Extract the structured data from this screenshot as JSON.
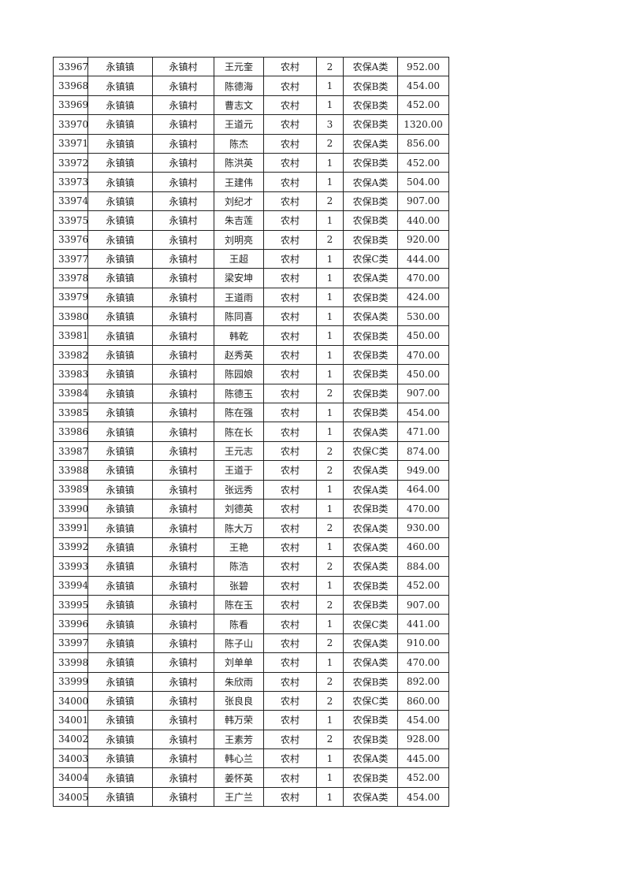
{
  "table": {
    "rows": [
      [
        "33967",
        "永镇镇",
        "永镇村",
        "王元奎",
        "农村",
        "2",
        "农保A类",
        "952.00"
      ],
      [
        "33968",
        "永镇镇",
        "永镇村",
        "陈德海",
        "农村",
        "1",
        "农保B类",
        "454.00"
      ],
      [
        "33969",
        "永镇镇",
        "永镇村",
        "曹志文",
        "农村",
        "1",
        "农保B类",
        "452.00"
      ],
      [
        "33970",
        "永镇镇",
        "永镇村",
        "王道元",
        "农村",
        "3",
        "农保B类",
        "1320.00"
      ],
      [
        "33971",
        "永镇镇",
        "永镇村",
        "陈杰",
        "农村",
        "2",
        "农保A类",
        "856.00"
      ],
      [
        "33972",
        "永镇镇",
        "永镇村",
        "陈洪英",
        "农村",
        "1",
        "农保B类",
        "452.00"
      ],
      [
        "33973",
        "永镇镇",
        "永镇村",
        "王建伟",
        "农村",
        "1",
        "农保A类",
        "504.00"
      ],
      [
        "33974",
        "永镇镇",
        "永镇村",
        "刘纪才",
        "农村",
        "2",
        "农保B类",
        "907.00"
      ],
      [
        "33975",
        "永镇镇",
        "永镇村",
        "朱吉莲",
        "农村",
        "1",
        "农保B类",
        "440.00"
      ],
      [
        "33976",
        "永镇镇",
        "永镇村",
        "刘明亮",
        "农村",
        "2",
        "农保B类",
        "920.00"
      ],
      [
        "33977",
        "永镇镇",
        "永镇村",
        "王超",
        "农村",
        "1",
        "农保C类",
        "444.00"
      ],
      [
        "33978",
        "永镇镇",
        "永镇村",
        "梁安坤",
        "农村",
        "1",
        "农保A类",
        "470.00"
      ],
      [
        "33979",
        "永镇镇",
        "永镇村",
        "王道雨",
        "农村",
        "1",
        "农保B类",
        "424.00"
      ],
      [
        "33980",
        "永镇镇",
        "永镇村",
        "陈同喜",
        "农村",
        "1",
        "农保A类",
        "530.00"
      ],
      [
        "33981",
        "永镇镇",
        "永镇村",
        "韩乾",
        "农村",
        "1",
        "农保B类",
        "450.00"
      ],
      [
        "33982",
        "永镇镇",
        "永镇村",
        "赵秀英",
        "农村",
        "1",
        "农保B类",
        "470.00"
      ],
      [
        "33983",
        "永镇镇",
        "永镇村",
        "陈园娘",
        "农村",
        "1",
        "农保B类",
        "450.00"
      ],
      [
        "33984",
        "永镇镇",
        "永镇村",
        "陈德玉",
        "农村",
        "2",
        "农保B类",
        "907.00"
      ],
      [
        "33985",
        "永镇镇",
        "永镇村",
        "陈在强",
        "农村",
        "1",
        "农保B类",
        "454.00"
      ],
      [
        "33986",
        "永镇镇",
        "永镇村",
        "陈在长",
        "农村",
        "1",
        "农保A类",
        "471.00"
      ],
      [
        "33987",
        "永镇镇",
        "永镇村",
        "王元志",
        "农村",
        "2",
        "农保C类",
        "874.00"
      ],
      [
        "33988",
        "永镇镇",
        "永镇村",
        "王道于",
        "农村",
        "2",
        "农保A类",
        "949.00"
      ],
      [
        "33989",
        "永镇镇",
        "永镇村",
        "张远秀",
        "农村",
        "1",
        "农保A类",
        "464.00"
      ],
      [
        "33990",
        "永镇镇",
        "永镇村",
        "刘德英",
        "农村",
        "1",
        "农保B类",
        "470.00"
      ],
      [
        "33991",
        "永镇镇",
        "永镇村",
        "陈大万",
        "农村",
        "2",
        "农保A类",
        "930.00"
      ],
      [
        "33992",
        "永镇镇",
        "永镇村",
        "王艳",
        "农村",
        "1",
        "农保A类",
        "460.00"
      ],
      [
        "33993",
        "永镇镇",
        "永镇村",
        "陈浩",
        "农村",
        "2",
        "农保A类",
        "884.00"
      ],
      [
        "33994",
        "永镇镇",
        "永镇村",
        "张碧",
        "农村",
        "1",
        "农保B类",
        "452.00"
      ],
      [
        "33995",
        "永镇镇",
        "永镇村",
        "陈在玉",
        "农村",
        "2",
        "农保B类",
        "907.00"
      ],
      [
        "33996",
        "永镇镇",
        "永镇村",
        "陈看",
        "农村",
        "1",
        "农保C类",
        "441.00"
      ],
      [
        "33997",
        "永镇镇",
        "永镇村",
        "陈子山",
        "农村",
        "2",
        "农保A类",
        "910.00"
      ],
      [
        "33998",
        "永镇镇",
        "永镇村",
        "刘单单",
        "农村",
        "1",
        "农保A类",
        "470.00"
      ],
      [
        "33999",
        "永镇镇",
        "永镇村",
        "朱欣雨",
        "农村",
        "2",
        "农保B类",
        "892.00"
      ],
      [
        "34000",
        "永镇镇",
        "永镇村",
        "张良良",
        "农村",
        "2",
        "农保C类",
        "860.00"
      ],
      [
        "34001",
        "永镇镇",
        "永镇村",
        "韩万荣",
        "农村",
        "1",
        "农保B类",
        "454.00"
      ],
      [
        "34002",
        "永镇镇",
        "永镇村",
        "王素芳",
        "农村",
        "2",
        "农保B类",
        "928.00"
      ],
      [
        "34003",
        "永镇镇",
        "永镇村",
        "韩心兰",
        "农村",
        "1",
        "农保A类",
        "445.00"
      ],
      [
        "34004",
        "永镇镇",
        "永镇村",
        "姜怀英",
        "农村",
        "1",
        "农保B类",
        "452.00"
      ],
      [
        "34005",
        "永镇镇",
        "永镇村",
        "王广兰",
        "农村",
        "1",
        "农保A类",
        "454.00"
      ]
    ]
  }
}
